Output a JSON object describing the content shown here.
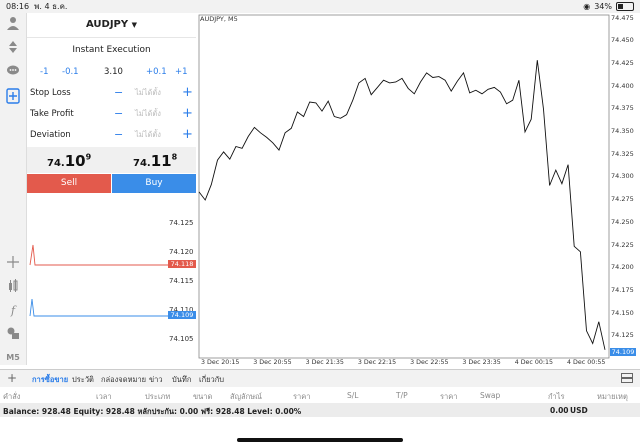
{
  "status": {
    "time": "08:16",
    "date": "พ. 4 ธ.ค.",
    "battery": "34%"
  },
  "toolbar_icons": [
    "account-icon",
    "trade-icon",
    "chat-icon",
    "new-order-icon",
    "crosshair-icon",
    "indicators-icon",
    "function-icon",
    "objects-icon",
    "timeframe-icon"
  ],
  "timeframe_label": "M5",
  "order": {
    "symbol": "AUDJPY",
    "execution": "Instant Execution",
    "volume_steps": [
      "-1",
      "-0.1",
      "3.10",
      "+0.1",
      "+1"
    ],
    "fields": [
      {
        "label": "Stop Loss",
        "placeholder": "ไม่ได้ตั้ง"
      },
      {
        "label": "Take Profit",
        "placeholder": "ไม่ได้ตั้ง"
      },
      {
        "label": "Deviation",
        "placeholder": "ไม่ได้ตั้ง"
      }
    ],
    "sell_price": {
      "prefix": "74.",
      "main": "10",
      "sup": "9"
    },
    "buy_price": {
      "prefix": "74.",
      "main": "11",
      "sup": "8"
    },
    "sell_label": "Sell",
    "buy_label": "Buy"
  },
  "depth": {
    "labels": [
      "74.125",
      "74.120",
      "74.115",
      "74.110",
      "74.105"
    ],
    "ask_tag": "74.118",
    "bid_tag": "74.109",
    "ask_color": "#e35a4c",
    "bid_color": "#3a8de8"
  },
  "chart": {
    "title": "AUDJPY, M5",
    "current_price_tag": "74.109",
    "chart_data": {
      "type": "line",
      "title": "AUDJPY, M5",
      "ylim": [
        74.1,
        74.48
      ],
      "y_ticks": [
        "74.475",
        "74.450",
        "74.425",
        "74.400",
        "74.375",
        "74.350",
        "74.325",
        "74.300",
        "74.275",
        "74.250",
        "74.225",
        "74.200",
        "74.175",
        "74.150",
        "74.125"
      ],
      "x_ticks": [
        "3 Dec 20:15",
        "3 Dec 20:55",
        "3 Dec 21:35",
        "3 Dec 22:15",
        "3 Dec 22:55",
        "3 Dec 23:35",
        "4 Dec 00:15",
        "4 Dec 00:55"
      ],
      "series": [
        {
          "values": [
            74.283,
            74.274,
            74.291,
            74.318,
            74.327,
            74.319,
            74.333,
            74.331,
            74.344,
            74.354,
            74.348,
            74.343,
            74.337,
            74.329,
            74.348,
            74.353,
            74.371,
            74.366,
            74.382,
            74.381,
            74.372,
            74.383,
            74.366,
            74.364,
            74.368,
            74.384,
            74.403,
            74.408,
            74.39,
            74.398,
            74.406,
            74.403,
            74.404,
            74.408,
            74.397,
            74.391,
            74.404,
            74.414,
            74.409,
            74.41,
            74.406,
            74.394,
            74.405,
            74.414,
            74.392,
            74.395,
            74.391,
            74.396,
            74.398,
            74.393,
            74.38,
            74.384,
            74.406,
            74.349,
            74.363,
            74.428,
            74.374,
            74.29,
            74.307,
            74.292,
            74.313,
            74.223,
            74.217,
            74.13,
            74.116,
            74.14,
            74.109
          ]
        }
      ]
    }
  },
  "terminal": {
    "tabs": [
      "การซื้อขาย",
      "ประวัติ",
      "กล่องจดหมาย",
      "ข่าว",
      "บันทึก",
      "เกี่ยวกับ"
    ],
    "active_tab": 0,
    "columns": [
      "คำสั่ง",
      "เวลา",
      "ประเภท",
      "ขนาด",
      "สัญลักษณ์",
      "ราคา",
      "S/L",
      "T/P",
      "ราคา",
      "Swap",
      "กำไร",
      "หมายเหตุ"
    ],
    "balance_text": "Balance: 928.48 Equity: 928.48 หลักประกัน: 0.00 ฟรี: 928.48 Level: 0.00%",
    "total_profit": "0.00",
    "currency": "USD"
  }
}
